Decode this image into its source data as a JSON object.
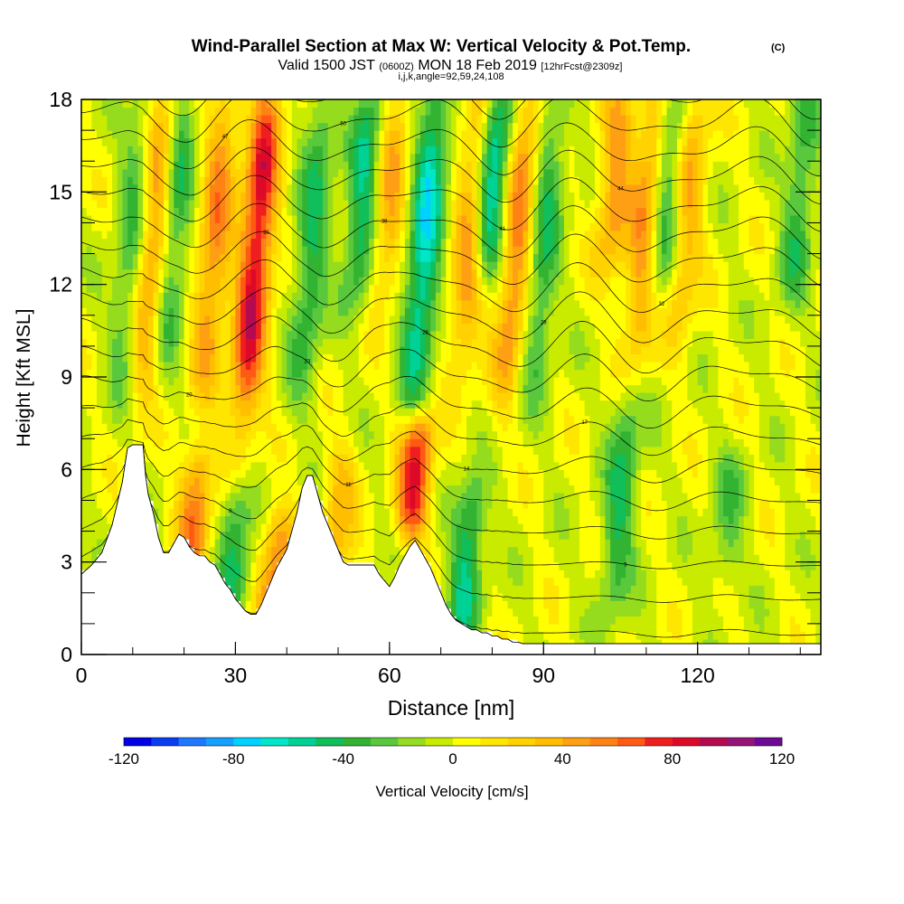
{
  "chart_data": {
    "type": "heatmap",
    "title": "Wind-Parallel Section at Max W: Vertical Velocity & Pot.Temp.",
    "title_mark": "(C)",
    "subtitle": {
      "prefix": "Valid 1500 JST",
      "utc": "(0600Z)",
      "main": "MON 18 Feb 2019",
      "forecast": "[12hrFcst@2309z]"
    },
    "grid_info": "i,j,k,angle=92,59,24,108",
    "xlabel": "Distance [nm]",
    "ylabel": "Height [Kft MSL]",
    "xlim": [
      0,
      144
    ],
    "ylim": [
      0,
      18
    ],
    "x_ticks": [
      0,
      30,
      60,
      90,
      120
    ],
    "y_ticks": [
      0,
      3,
      6,
      9,
      12,
      15,
      18
    ],
    "colorbar": {
      "label": "Vertical Velocity [cm/s]",
      "min": -120,
      "max": 120,
      "step": 10,
      "tick_labels": [
        "-120",
        "-80",
        "-40",
        "0",
        "40",
        "80",
        "120"
      ],
      "colors": [
        "#0000e6",
        "#0a3cf0",
        "#1e78ff",
        "#14a0ff",
        "#00d2ff",
        "#00e6c8",
        "#00d296",
        "#10be5a",
        "#32b432",
        "#5ac83c",
        "#96dc1e",
        "#c8eb00",
        "#ffff00",
        "#ffe600",
        "#ffd200",
        "#ffbe00",
        "#ffa014",
        "#ff8214",
        "#ff5a14",
        "#f01e1e",
        "#dc0a28",
        "#b40a50",
        "#961478",
        "#6e0a96"
      ]
    },
    "updraft_cores": [
      {
        "x": 14,
        "z_bottom": 9,
        "z_top": 18,
        "w": 55
      },
      {
        "x": 22,
        "z_bottom": 3,
        "z_top": 6,
        "w": 55
      },
      {
        "x": 26,
        "z_bottom": 9,
        "z_top": 18,
        "w": 50
      },
      {
        "x": 34,
        "z_bottom": 8,
        "z_top": 18,
        "w": 85
      },
      {
        "x": 38,
        "z_bottom": 1.5,
        "z_top": 4,
        "w": 55
      },
      {
        "x": 50,
        "z_bottom": 3,
        "z_top": 6,
        "w": 35
      },
      {
        "x": 60,
        "z_bottom": 12,
        "z_top": 18,
        "w": 40
      },
      {
        "x": 65,
        "z_bottom": 4.5,
        "z_top": 7,
        "w": 80
      },
      {
        "x": 76,
        "z_bottom": 10,
        "z_top": 18,
        "w": 50
      },
      {
        "x": 85,
        "z_bottom": 9,
        "z_top": 18,
        "w": 55
      },
      {
        "x": 104,
        "z_bottom": 13,
        "z_top": 18,
        "w": 45
      },
      {
        "x": 110,
        "z_bottom": 10,
        "z_top": 18,
        "w": 50
      },
      {
        "x": 118,
        "z_bottom": 11,
        "z_top": 18,
        "w": 40
      }
    ],
    "downdraft_cores": [
      {
        "x": 10,
        "z_bottom": 9,
        "z_top": 18,
        "w": -35
      },
      {
        "x": 18,
        "z_bottom": 10,
        "z_top": 18,
        "w": -40
      },
      {
        "x": 30,
        "z_bottom": 2,
        "z_top": 5,
        "w": -40
      },
      {
        "x": 45,
        "z_bottom": 9,
        "z_top": 18,
        "w": -40
      },
      {
        "x": 55,
        "z_bottom": 12,
        "z_top": 18,
        "w": -50
      },
      {
        "x": 67,
        "z_bottom": 9,
        "z_top": 18,
        "w": -65
      },
      {
        "x": 75,
        "z_bottom": 1,
        "z_top": 5,
        "w": -50
      },
      {
        "x": 80,
        "z_bottom": 13,
        "z_top": 18,
        "w": -70
      },
      {
        "x": 90,
        "z_bottom": 9,
        "z_top": 18,
        "w": -40
      },
      {
        "x": 105,
        "z_bottom": 2,
        "z_top": 8,
        "w": -40
      },
      {
        "x": 114,
        "z_bottom": 12,
        "z_top": 18,
        "w": -45
      },
      {
        "x": 126,
        "z_bottom": 3,
        "z_top": 6,
        "w": -25
      },
      {
        "x": 140,
        "z_bottom": 12,
        "z_top": 18,
        "w": -35
      }
    ],
    "terrain_profile": {
      "x": [
        0,
        2,
        4,
        6,
        8,
        9,
        10,
        12,
        12.5,
        13,
        14,
        15,
        16,
        17,
        18,
        19,
        20,
        21,
        22,
        23,
        24,
        25,
        26,
        27,
        28,
        29,
        30,
        31,
        32,
        33,
        34,
        35,
        36,
        37,
        38,
        39,
        40,
        41,
        42,
        43,
        44,
        45,
        46,
        47,
        48,
        49,
        50,
        51,
        52,
        53,
        54,
        55,
        56,
        57,
        58,
        59,
        60,
        61,
        62,
        63,
        64,
        65,
        66,
        67,
        68,
        69,
        70,
        71,
        72,
        73,
        74,
        75,
        76,
        77,
        78,
        79,
        80,
        81,
        82,
        83,
        84,
        85,
        86,
        88,
        144
      ],
      "z": [
        2.6,
        2.9,
        3.3,
        4.2,
        5.6,
        6.7,
        6.8,
        6.8,
        5.8,
        5.2,
        4.6,
        3.8,
        3.3,
        3.3,
        3.6,
        3.9,
        3.8,
        3.5,
        3.3,
        3.2,
        3.2,
        3.0,
        2.9,
        2.6,
        2.3,
        2.1,
        1.8,
        1.6,
        1.4,
        1.3,
        1.3,
        1.6,
        2.0,
        2.4,
        2.8,
        3.1,
        3.4,
        4.0,
        4.6,
        5.4,
        5.8,
        5.8,
        5.2,
        4.6,
        4.2,
        3.8,
        3.4,
        3.0,
        2.9,
        2.9,
        2.9,
        2.9,
        2.9,
        2.9,
        2.6,
        2.4,
        2.2,
        2.5,
        2.9,
        3.2,
        3.5,
        3.7,
        3.4,
        3.1,
        2.8,
        2.4,
        2.0,
        1.6,
        1.3,
        1.1,
        1.0,
        0.9,
        0.8,
        0.8,
        0.7,
        0.7,
        0.6,
        0.6,
        0.5,
        0.5,
        0.4,
        0.4,
        0.35,
        0.35,
        0.35
      ]
    },
    "theta_contours": {
      "levels": [
        -3,
        0,
        3,
        6,
        9,
        12,
        15,
        18,
        21,
        24,
        27,
        30,
        33,
        36,
        39,
        42,
        45,
        48,
        51,
        54,
        57,
        60
      ],
      "labels": [
        "5",
        "8",
        "11",
        "14",
        "17",
        "20",
        "23",
        "26",
        "29",
        "32",
        "35",
        "38",
        "41",
        "44",
        "47",
        "50"
      ]
    }
  }
}
